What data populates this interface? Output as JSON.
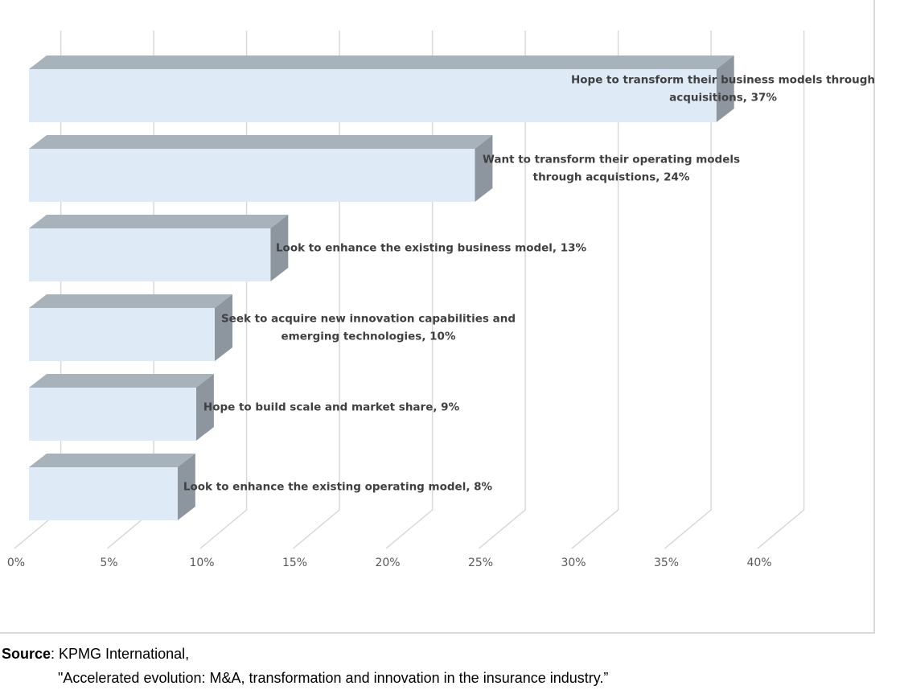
{
  "chart_data": {
    "type": "bar",
    "orientation": "horizontal",
    "style": "3d",
    "title": "",
    "xlabel": "",
    "ylabel": "",
    "xlim": [
      0,
      40
    ],
    "x_ticks": [
      "0%",
      "5%",
      "10%",
      "15%",
      "20%",
      "25%",
      "30%",
      "35%",
      "40%"
    ],
    "x_tick_values": [
      0,
      5,
      10,
      15,
      20,
      25,
      30,
      35,
      40
    ],
    "grid": "vertical",
    "legend": "none",
    "bar_colors": {
      "front": "#dfeaf7",
      "top": "#a8b2bb",
      "side": "#8d969e"
    },
    "categories": [
      "Hope to transform their business models through acquisitions",
      "Want to transform their operating models through acquistions",
      "Look to enhance the existing business model",
      "Seek to acquire new innovation capabilities and emerging technologies",
      "Hope to build scale and market share",
      "Look to enhance the existing operating model"
    ],
    "values": [
      37,
      24,
      13,
      10,
      9,
      8
    ],
    "data_labels": [
      [
        "Hope to transform their business models through",
        "acquisitions, 37%"
      ],
      [
        "Want to transform their operating models",
        "through acquistions, 24%"
      ],
      [
        "Look to enhance the existing  business model, 13%"
      ],
      [
        "Seek to acquire new innovation capabilities and",
        "emerging technologies, 10%"
      ],
      [
        "Hope to build scale and market share, 9%"
      ],
      [
        "Look to enhance the existing  operating model, 8%"
      ]
    ]
  },
  "source": {
    "key": "Source",
    "line1": ": KPMG International,",
    "line2": "\"Accelerated evolution: M&A, transformation and innovation in the insurance industry.”"
  }
}
